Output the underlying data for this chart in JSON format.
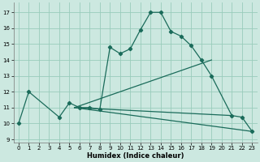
{
  "xlabel": "Humidex (Indice chaleur)",
  "ylabel": "",
  "xlim": [
    -0.5,
    23.5
  ],
  "ylim": [
    8.8,
    17.6
  ],
  "yticks": [
    9,
    10,
    11,
    12,
    13,
    14,
    15,
    16,
    17
  ],
  "xticks": [
    0,
    1,
    2,
    3,
    4,
    5,
    6,
    7,
    8,
    9,
    10,
    11,
    12,
    13,
    14,
    15,
    16,
    17,
    18,
    19,
    20,
    21,
    22,
    23
  ],
  "bg_color": "#cce8e0",
  "grid_color": "#99ccbb",
  "line_color": "#1a6b5a",
  "curve_x": [
    0,
    1,
    4,
    5,
    6,
    7,
    8,
    9,
    10,
    11,
    12,
    13,
    14,
    15,
    16,
    17,
    18,
    19,
    21,
    22,
    23
  ],
  "curve_y": [
    10.0,
    12.0,
    10.4,
    11.3,
    11.0,
    11.0,
    10.9,
    14.8,
    14.4,
    14.7,
    15.9,
    17.0,
    17.0,
    15.8,
    15.5,
    14.9,
    14.0,
    13.0,
    10.5,
    10.4,
    9.5
  ],
  "line1_x": [
    5.5,
    19.0
  ],
  "line1_y": [
    11.0,
    14.0
  ],
  "line2_x": [
    5.5,
    23.0
  ],
  "line2_y": [
    11.0,
    9.5
  ],
  "line3_x": [
    5.5,
    21.0
  ],
  "line3_y": [
    11.0,
    10.5
  ]
}
